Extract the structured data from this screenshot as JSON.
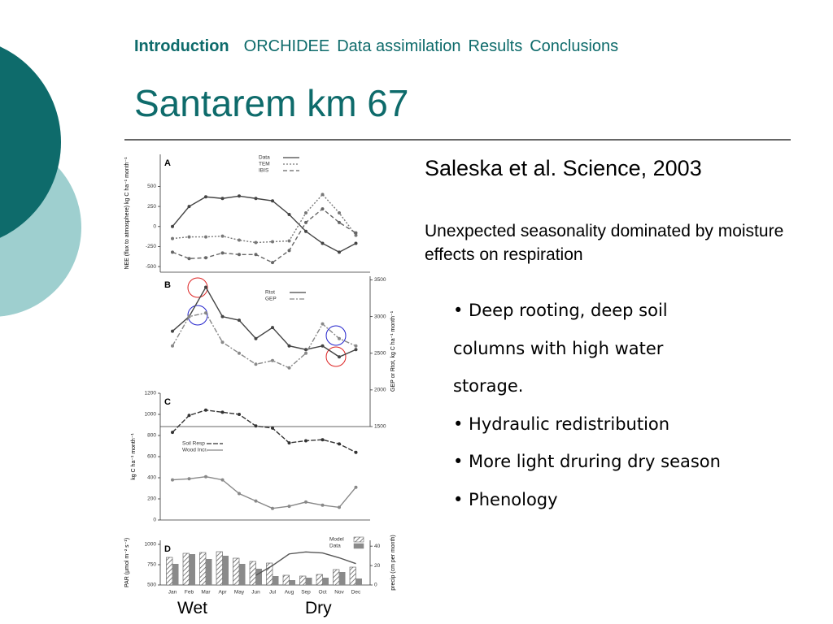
{
  "header": {
    "nav": [
      "Introduction",
      "ORCHIDEE",
      "Data assimilation",
      "Results",
      "Conclusions"
    ],
    "title": "Santarem km 67"
  },
  "citation": "Saleska et al. Science, 2003",
  "summary": "Unexpected  seasonality dominated by moisture effects on respiration",
  "bullets": [
    "• Deep rooting, deep soil columns with high water storage.",
    "• Hydraulic redistribution",
    "• More light druring dry season",
    "• Phenology"
  ],
  "labels": [
    "Wet",
    "Dry"
  ],
  "chart_data": [
    {
      "type": "line",
      "title": "A",
      "y_label": "NEE (flux to atmosphere) kg C ha⁻¹ month⁻¹",
      "ylim": [
        -570,
        900
      ],
      "yticks": [
        500,
        250,
        0,
        -250,
        -500
      ],
      "series": [
        {
          "name": "Data",
          "color": "#444444",
          "values": [
            0,
            250,
            370,
            350,
            380,
            350,
            320,
            150,
            -60,
            -210,
            -320,
            -210
          ]
        },
        {
          "name": "TEM",
          "color": "#777777",
          "dash": "2 2",
          "values": [
            -150,
            -130,
            -130,
            -120,
            -170,
            -200,
            -190,
            -180,
            170,
            400,
            170,
            -110
          ]
        },
        {
          "name": "IBIS",
          "color": "#666666",
          "dash": "5 3",
          "values": [
            -320,
            -400,
            -390,
            -330,
            -350,
            -350,
            -450,
            -300,
            50,
            220,
            50,
            -80
          ]
        }
      ]
    },
    {
      "type": "line",
      "title": "B",
      "y2_label": "GEP or Rtot, kg C ha⁻¹ month⁻¹",
      "y2lim": [
        1500,
        3550
      ],
      "y2ticks": [
        3500,
        3000,
        2500,
        2000,
        1500
      ],
      "series": [
        {
          "name": "Rtot",
          "color": "#444444",
          "axis": "y2",
          "values": [
            2800,
            3000,
            3400,
            3000,
            2950,
            2700,
            2850,
            2600,
            2550,
            2600,
            2450,
            2550
          ]
        },
        {
          "name": "GEP",
          "color": "#888888",
          "axis": "y2",
          "dash": "6 2 2 2",
          "values": [
            2600,
            3000,
            3050,
            2650,
            2500,
            2350,
            2400,
            2300,
            2500,
            2900,
            2700,
            2600
          ]
        }
      ]
    },
    {
      "type": "line",
      "title": "C",
      "y_label": "kg C ha⁻¹ month⁻¹",
      "ylim": [
        0,
        1200
      ],
      "yticks": [
        1200,
        1000,
        800,
        600,
        400,
        200,
        0
      ],
      "series": [
        {
          "name": "Soil Resp",
          "color": "#333333",
          "dash": "6 2",
          "values": [
            830,
            990,
            1040,
            1020,
            1000,
            890,
            870,
            730,
            750,
            760,
            720,
            640
          ]
        },
        {
          "name": "Wood Incr.",
          "color": "#888888",
          "values": [
            380,
            390,
            410,
            380,
            250,
            180,
            110,
            130,
            170,
            140,
            120,
            310
          ]
        }
      ]
    },
    {
      "type": "bar",
      "title": "D",
      "y_label": "PAR (μmol m⁻² s⁻¹)",
      "y2_label": "precip (cm per month)",
      "categories": [
        "Jan",
        "Feb",
        "Mar",
        "Apr",
        "May",
        "Jun",
        "Jul",
        "Aug",
        "Sep",
        "Oct",
        "Nov",
        "Dec"
      ],
      "ylim": [
        500,
        1050
      ],
      "yticks": [
        1000,
        750,
        500
      ],
      "y2lim": [
        0,
        46
      ],
      "y2ticks": [
        40,
        20,
        0
      ],
      "series": [
        {
          "name": "Model",
          "color": "#555555",
          "pattern": "hatch",
          "values": [
            840,
            890,
            900,
            910,
            830,
            790,
            770,
            620,
            610,
            630,
            690,
            720
          ]
        },
        {
          "name": "Data",
          "color": "#8a8a8a",
          "values": [
            760,
            880,
            820,
            860,
            760,
            700,
            610,
            560,
            590,
            590,
            660,
            580
          ]
        },
        {
          "name": "precip",
          "type": "line",
          "axis": "y2",
          "color": "#555555",
          "values": [
            null,
            null,
            null,
            null,
            null,
            10,
            20,
            32,
            34,
            33,
            28,
            22
          ]
        }
      ]
    }
  ]
}
